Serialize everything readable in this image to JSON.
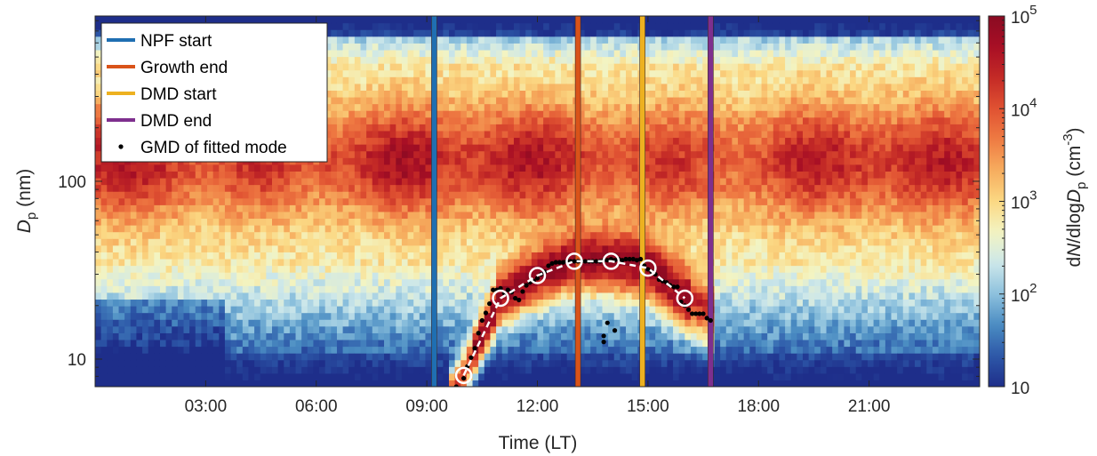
{
  "chart_data": {
    "type": "heatmap",
    "title": "",
    "xlabel": "Time (LT)",
    "ylabel": {
      "main": "D",
      "sub": "p",
      "unit": " (nm)"
    },
    "colorbar_label": {
      "pre": "d",
      "N": "N",
      "mid": "/dlog",
      "D": "D",
      "sub": "p",
      "unit": " (cm",
      "exp": "-3",
      "close": ")"
    },
    "xlim_hours": [
      0,
      24
    ],
    "ylim_nm": [
      7,
      850
    ],
    "y_scale": "log",
    "x_ticks": [
      {
        "value": 3,
        "label": "03:00"
      },
      {
        "value": 6,
        "label": "06:00"
      },
      {
        "value": 9,
        "label": "09:00"
      },
      {
        "value": 12,
        "label": "12:00"
      },
      {
        "value": 15,
        "label": "15:00"
      },
      {
        "value": 18,
        "label": "18:00"
      },
      {
        "value": 21,
        "label": "21:00"
      }
    ],
    "y_ticks": [
      {
        "value": 10,
        "label": "10"
      },
      {
        "value": 100,
        "label": "100"
      }
    ],
    "color_scale": {
      "type": "log",
      "min": 10,
      "max": 100000
    },
    "colorbar_ticks": [
      {
        "value": 10,
        "base": "10",
        "exp": ""
      },
      {
        "value": 100,
        "base": "10",
        "exp": "2"
      },
      {
        "value": 1000,
        "base": "10",
        "exp": "3"
      },
      {
        "value": 10000,
        "base": "10",
        "exp": "4"
      },
      {
        "value": 100000,
        "base": "10",
        "exp": "5"
      }
    ],
    "colormap": [
      "#1e2e8a",
      "#2d58a8",
      "#4a8cc2",
      "#8dc1dd",
      "#cce7ea",
      "#f3f4c2",
      "#fbd883",
      "#f6ad5e",
      "#ef7b43",
      "#e05232",
      "#c42a26",
      "#a80f25",
      "#8a0a22"
    ],
    "vertical_lines": [
      {
        "name": "NPF start",
        "time": 9.2,
        "color": "#1f6fb2"
      },
      {
        "name": "Growth end",
        "time": 13.1,
        "color": "#d95319"
      },
      {
        "name": "DMD start",
        "time": 14.85,
        "color": "#edb120"
      },
      {
        "name": "DMD end",
        "time": 16.7,
        "color": "#7e2f8e"
      }
    ],
    "legend": {
      "position": "top-left",
      "entries": [
        {
          "label": "NPF start",
          "color": "#1f6fb2",
          "kind": "line"
        },
        {
          "label": "Growth end",
          "color": "#d95319",
          "kind": "line"
        },
        {
          "label": "DMD start",
          "color": "#edb120",
          "kind": "line"
        },
        {
          "label": "DMD end",
          "color": "#7e2f8e",
          "kind": "line"
        },
        {
          "label": "GMD of fitted mode",
          "color": "#000000",
          "kind": "dot"
        }
      ]
    },
    "gmd_points": [
      [
        9.8,
        7.0
      ],
      [
        10.0,
        7.8
      ],
      [
        10.1,
        9.1
      ],
      [
        10.2,
        10.2
      ],
      [
        10.3,
        11.5
      ],
      [
        10.4,
        14.0
      ],
      [
        10.5,
        16.5
      ],
      [
        10.6,
        18.2
      ],
      [
        10.7,
        20.5
      ],
      [
        10.8,
        24.5
      ],
      [
        10.9,
        24.5
      ],
      [
        11.0,
        25.0
      ],
      [
        11.1,
        23.5
      ],
      [
        11.2,
        24.5
      ],
      [
        11.3,
        23.8
      ],
      [
        11.4,
        22.0
      ],
      [
        11.5,
        21.5
      ],
      [
        11.6,
        24.0
      ],
      [
        11.7,
        26.0
      ],
      [
        11.8,
        27.0
      ],
      [
        11.9,
        27.5
      ],
      [
        12.0,
        28.5
      ],
      [
        12.1,
        30.0
      ],
      [
        12.2,
        31.0
      ],
      [
        12.3,
        33.5
      ],
      [
        12.4,
        34.5
      ],
      [
        12.5,
        35.0
      ],
      [
        12.6,
        35.0
      ],
      [
        12.7,
        35.0
      ],
      [
        12.8,
        35.5
      ],
      [
        12.9,
        35.5
      ],
      [
        13.0,
        35.5
      ],
      [
        13.1,
        35.5
      ],
      [
        13.2,
        35.5
      ],
      [
        13.3,
        35.5
      ],
      [
        13.4,
        35.5
      ],
      [
        13.5,
        35.5
      ],
      [
        13.6,
        35.5
      ],
      [
        13.7,
        35.5
      ],
      [
        13.8,
        36.0
      ],
      [
        13.9,
        36.0
      ],
      [
        14.0,
        36.5
      ],
      [
        14.1,
        36.0
      ],
      [
        14.2,
        36.5
      ],
      [
        14.3,
        36.0
      ],
      [
        14.4,
        36.5
      ],
      [
        14.5,
        36.5
      ],
      [
        14.6,
        36.5
      ],
      [
        14.7,
        36.0
      ],
      [
        14.8,
        36.5
      ],
      [
        14.9,
        33.5
      ],
      [
        15.0,
        32.0
      ],
      [
        15.1,
        31.0
      ],
      [
        15.2,
        30.0
      ],
      [
        15.3,
        28.0
      ],
      [
        15.4,
        27.5
      ],
      [
        15.5,
        27.0
      ],
      [
        15.6,
        26.0
      ],
      [
        15.7,
        25.5
      ],
      [
        15.8,
        25.5
      ],
      [
        15.9,
        21.0
      ],
      [
        16.0,
        20.0
      ],
      [
        16.1,
        19.0
      ],
      [
        16.2,
        18.0
      ],
      [
        16.3,
        18.0
      ],
      [
        16.4,
        18.0
      ],
      [
        16.5,
        18.0
      ],
      [
        16.6,
        17.0
      ],
      [
        16.7,
        16.5
      ],
      [
        13.8,
        12.5
      ],
      [
        13.8,
        13.5
      ],
      [
        13.9,
        16.0
      ],
      [
        14.1,
        14.5
      ]
    ],
    "hourly_fit": [
      [
        10,
        8.1
      ],
      [
        11,
        22.0
      ],
      [
        12,
        29.5
      ],
      [
        13,
        35.5
      ],
      [
        14,
        35.5
      ],
      [
        15,
        32.5
      ],
      [
        16,
        22.0
      ]
    ],
    "intensity_model": {
      "ridge_upper_nm": 800,
      "band_upper_nm": 450,
      "band_center_nm": 130,
      "hot_band_nm": 120,
      "nucleation_arc_color_peak": 80000
    }
  }
}
